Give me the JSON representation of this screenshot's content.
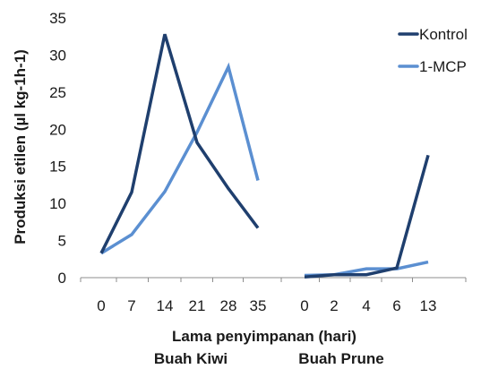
{
  "chart_data": {
    "type": "line",
    "ylabel": "Produksi etilen (µl kg-1h-1)",
    "xlabel": "Lama penyimpanan (hari)",
    "ylim": [
      0,
      35
    ],
    "yticks": [
      0,
      5,
      10,
      15,
      20,
      25,
      30,
      35
    ],
    "grid": false,
    "legend_position": "top-right",
    "groups": [
      {
        "name": "Buah Kiwi",
        "categories": [
          "0",
          "7",
          "14",
          "21",
          "28",
          "35"
        ],
        "series": [
          {
            "name": "Kontrol",
            "color": "#1f3f6e",
            "values": [
              3.3,
              11.5,
              32.8,
              18.2,
              12.0,
              6.7
            ]
          },
          {
            "name": "1-MCP",
            "color": "#5b8fd1",
            "values": [
              3.3,
              5.8,
              11.6,
              19.6,
              28.4,
              13.1
            ]
          }
        ]
      },
      {
        "name": "Buah Prune",
        "categories": [
          "0",
          "2",
          "4",
          "6",
          "13"
        ],
        "series": [
          {
            "name": "Kontrol",
            "color": "#1f3f6e",
            "values": [
              0.1,
              0.4,
              0.4,
              1.3,
              16.5
            ]
          },
          {
            "name": "1-MCP",
            "color": "#5b8fd1",
            "values": [
              0.3,
              0.4,
              1.2,
              1.2,
              2.1
            ]
          }
        ]
      }
    ],
    "legend": [
      {
        "name": "Kontrol",
        "color": "#1f3f6e"
      },
      {
        "name": "1-MCP",
        "color": "#5b8fd1"
      }
    ]
  }
}
